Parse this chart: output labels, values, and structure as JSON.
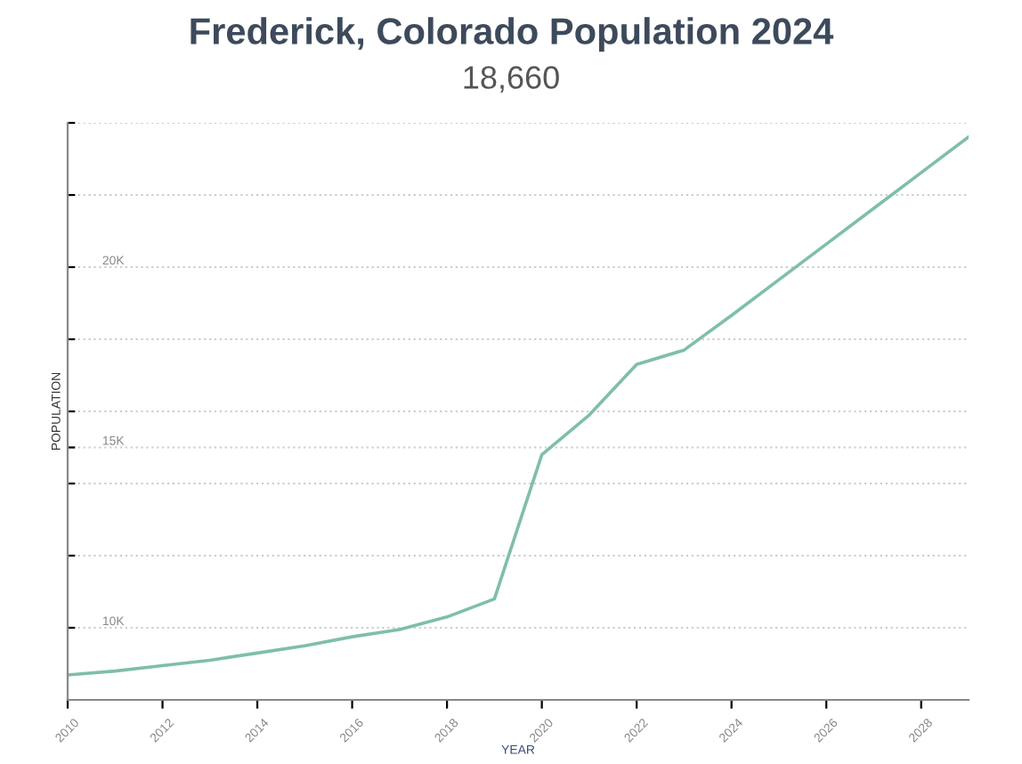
{
  "chart_data": {
    "type": "line",
    "title": "Frederick, Colorado Population 2024",
    "subtitle": "18,660",
    "xlabel": "YEAR",
    "ylabel": "POPULATION",
    "x": [
      2010,
      2011,
      2012,
      2013,
      2014,
      2015,
      2016,
      2017,
      2018,
      2019,
      2020,
      2021,
      2022,
      2023,
      2024,
      2025,
      2026,
      2027,
      2028,
      2029
    ],
    "series": [
      {
        "color": "#7fbfa6",
        "values": [
          8690,
          8800,
          8950,
          9100,
          9300,
          9500,
          9750,
          9950,
          10300,
          10800,
          14800,
          15900,
          17300,
          17700,
          18660,
          19650,
          20640,
          21630,
          22620,
          23610
        ]
      }
    ],
    "xlim": [
      2010,
      2029
    ],
    "xticks": [
      2010,
      2012,
      2014,
      2016,
      2018,
      2020,
      2022,
      2024,
      2026,
      2028
    ],
    "ylim": [
      8000,
      24000
    ],
    "yticks": [
      {
        "value": 10000,
        "label": "10K"
      },
      {
        "value": 12000,
        "label": null
      },
      {
        "value": 14000,
        "label": null
      },
      {
        "value": 15000,
        "label": "15K"
      },
      {
        "value": 16000,
        "label": null
      },
      {
        "value": 18000,
        "label": null
      },
      {
        "value": 20000,
        "label": "20K"
      },
      {
        "value": 22000,
        "label": null
      },
      {
        "value": 24000,
        "label": null
      }
    ],
    "grid": "y",
    "legend": false,
    "marker": "none",
    "line_style": "solid"
  }
}
